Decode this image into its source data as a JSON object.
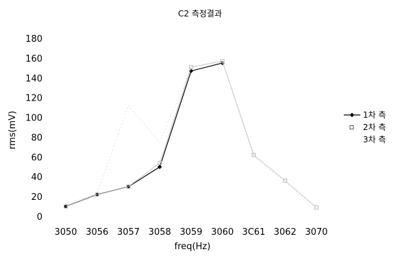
{
  "chart_data": {
    "type": "line",
    "title": "C2 측정결과",
    "xlabel": "freq(Hz)",
    "ylabel": "rms(mV)",
    "categories": [
      "3050",
      "3056",
      "3057",
      "3058",
      "3059",
      "3060",
      "3C61",
      "3062",
      "3070"
    ],
    "ylim": [
      0,
      180
    ],
    "yticks": [
      0,
      20,
      40,
      60,
      80,
      100,
      120,
      140,
      160,
      180
    ],
    "grid": false,
    "legend_position": "right",
    "series": [
      {
        "name": "1차 측",
        "marker": "diamond",
        "color": "#000000",
        "values": [
          10,
          22,
          30,
          50,
          147,
          155,
          null,
          null,
          null
        ]
      },
      {
        "name": "2차 측",
        "marker": "square",
        "color": "#bdbdbd",
        "values": [
          10,
          22,
          30,
          54,
          151,
          157,
          62,
          36,
          9
        ]
      },
      {
        "name": "3차 측",
        "marker": "none",
        "color": "#d9d9d9",
        "values": [
          12,
          23,
          112,
          75,
          150,
          156,
          60,
          35,
          8
        ]
      }
    ]
  }
}
